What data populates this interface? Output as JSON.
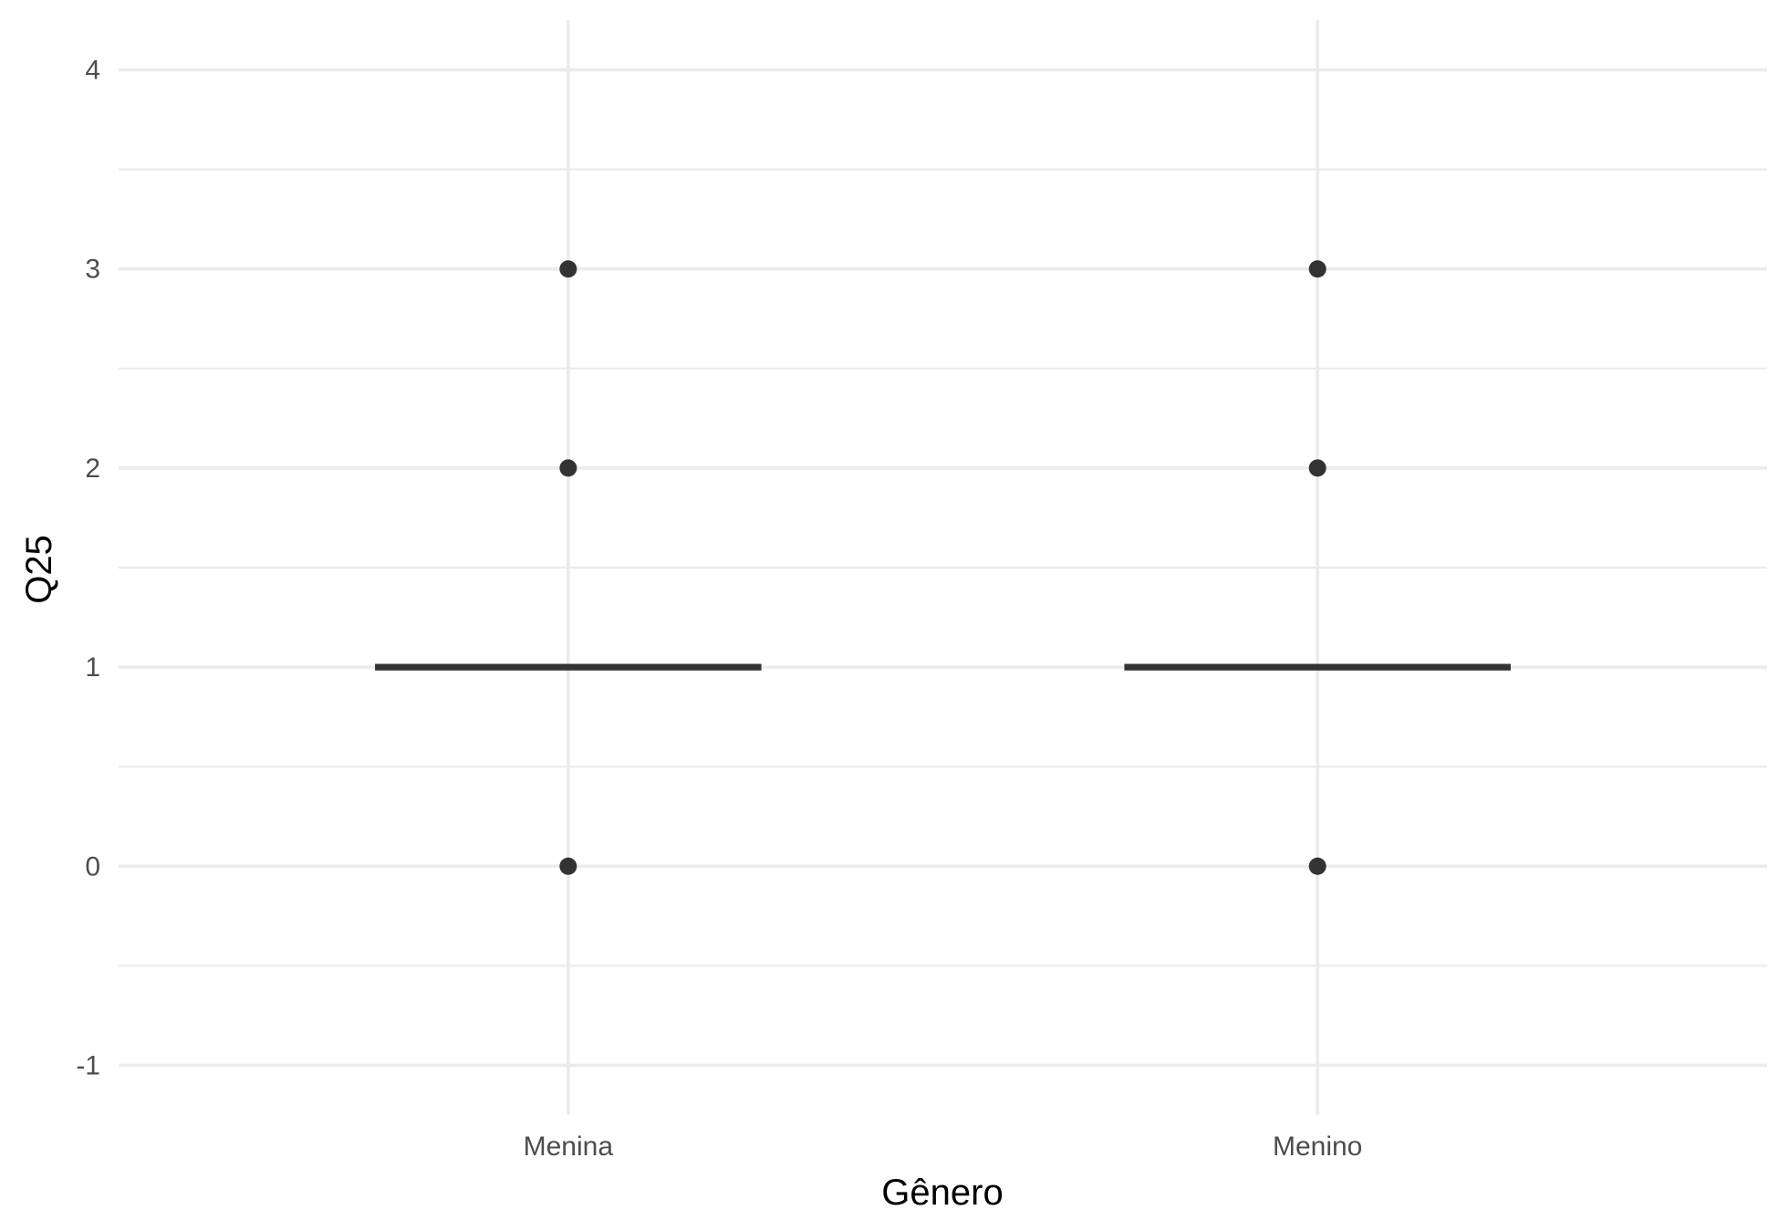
{
  "chart_data": {
    "type": "boxplot",
    "title": "",
    "xlabel": "Gênero",
    "ylabel": "Q25",
    "categories": [
      "Menina",
      "Menino"
    ],
    "boxes": [
      {
        "category": "Menina",
        "q1": 1,
        "median": 1,
        "q3": 1,
        "whisker_low": 1,
        "whisker_high": 1,
        "outliers": [
          3,
          2,
          0
        ]
      },
      {
        "category": "Menino",
        "q1": 1,
        "median": 1,
        "q3": 1,
        "whisker_low": 1,
        "whisker_high": 1,
        "outliers": [
          3,
          2,
          0
        ]
      }
    ],
    "ylim": [
      -1.25,
      4.25
    ],
    "yticks": [
      "-1",
      "0",
      "1",
      "2",
      "3",
      "4"
    ],
    "ytick_values": [
      -1,
      0,
      1,
      2,
      3,
      4
    ],
    "yminor_values": [
      -0.5,
      0.5,
      1.5,
      2.5,
      3.5
    ],
    "grid": true,
    "colors": {
      "grid": "#ebebeb",
      "marks": "#333333",
      "tick_text": "#4d4d4d",
      "title_text": "#000000"
    }
  }
}
